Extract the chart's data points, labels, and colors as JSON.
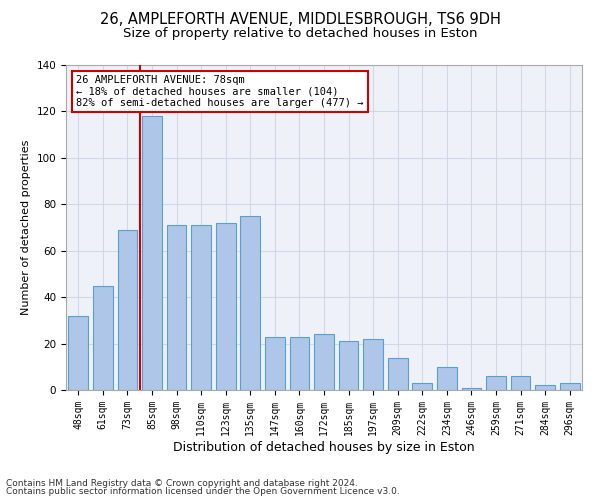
{
  "title1": "26, AMPLEFORTH AVENUE, MIDDLESBROUGH, TS6 9DH",
  "title2": "Size of property relative to detached houses in Eston",
  "xlabel": "Distribution of detached houses by size in Eston",
  "ylabel": "Number of detached properties",
  "categories": [
    "48sqm",
    "61sqm",
    "73sqm",
    "85sqm",
    "98sqm",
    "110sqm",
    "123sqm",
    "135sqm",
    "147sqm",
    "160sqm",
    "172sqm",
    "185sqm",
    "197sqm",
    "209sqm",
    "222sqm",
    "234sqm",
    "246sqm",
    "259sqm",
    "271sqm",
    "284sqm",
    "296sqm"
  ],
  "values": [
    32,
    45,
    69,
    118,
    71,
    71,
    72,
    75,
    23,
    23,
    24,
    21,
    22,
    14,
    3,
    10,
    1,
    6,
    6,
    2,
    3
  ],
  "bar_color": "#aec6e8",
  "bar_edge_color": "#5a9fd4",
  "bar_width": 0.8,
  "vline_pos": 2.5,
  "vline_color": "#cc0000",
  "annotation_text": "26 AMPLEFORTH AVENUE: 78sqm\n← 18% of detached houses are smaller (104)\n82% of semi-detached houses are larger (477) →",
  "annotation_box_color": "#ffffff",
  "annotation_edge_color": "#cc0000",
  "ylim": [
    0,
    140
  ],
  "yticks": [
    0,
    20,
    40,
    60,
    80,
    100,
    120,
    140
  ],
  "grid_color": "#d0d8e8",
  "bg_color": "#eef2f8",
  "footnote1": "Contains HM Land Registry data © Crown copyright and database right 2024.",
  "footnote2": "Contains public sector information licensed under the Open Government Licence v3.0.",
  "title1_fontsize": 10.5,
  "title2_fontsize": 9.5,
  "xlabel_fontsize": 9,
  "ylabel_fontsize": 8,
  "tick_fontsize": 7,
  "annot_fontsize": 7.5,
  "footnote_fontsize": 6.5
}
